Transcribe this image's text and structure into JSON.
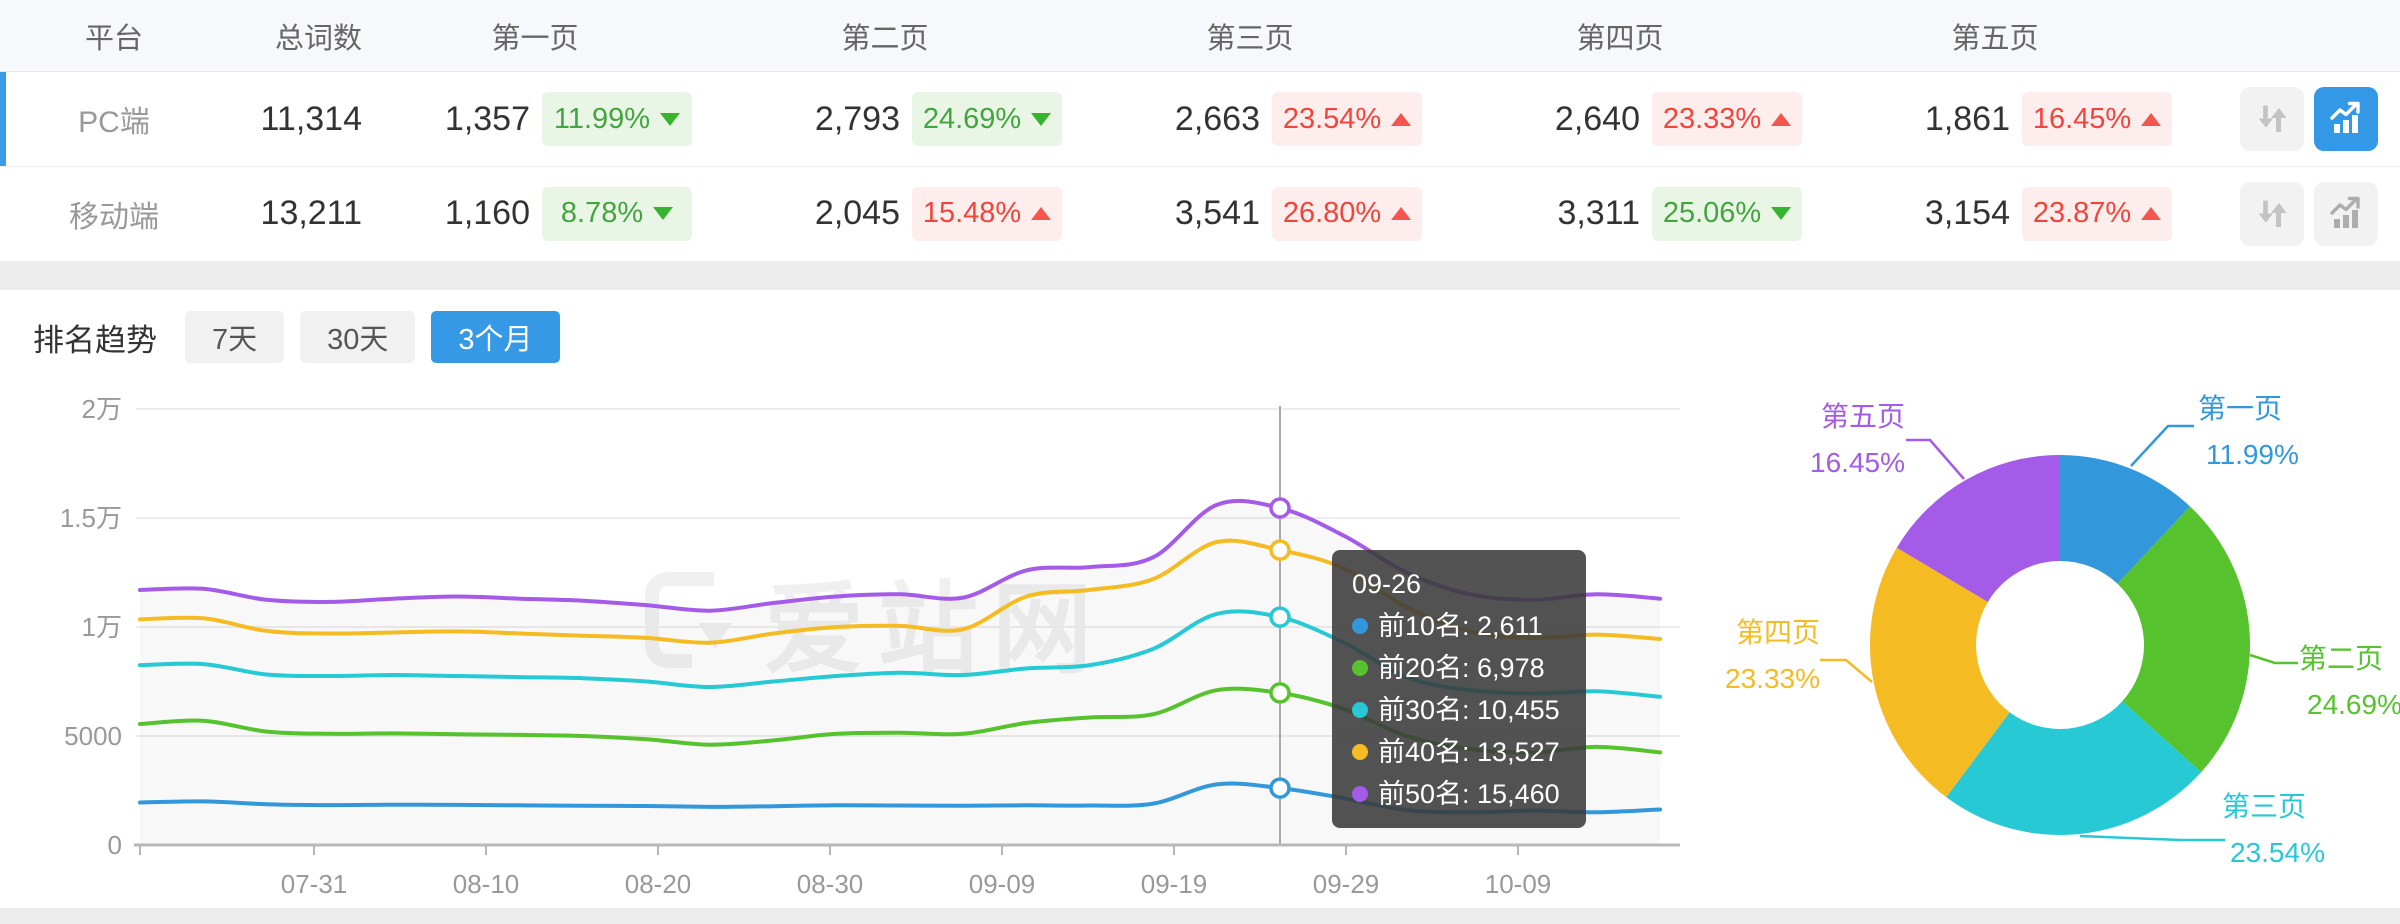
{
  "table": {
    "columns": [
      "平台",
      "总词数",
      "第一页",
      "第二页",
      "第三页",
      "第四页",
      "第五页"
    ],
    "rows": [
      {
        "platform": "PC端",
        "total": "11,314",
        "active": true,
        "pages": [
          {
            "count": "1,357",
            "pct": "11.99%",
            "dir": "down",
            "tone": "green"
          },
          {
            "count": "2,793",
            "pct": "24.69%",
            "dir": "down",
            "tone": "green"
          },
          {
            "count": "2,663",
            "pct": "23.54%",
            "dir": "up",
            "tone": "red"
          },
          {
            "count": "2,640",
            "pct": "23.33%",
            "dir": "up",
            "tone": "red"
          },
          {
            "count": "1,861",
            "pct": "16.45%",
            "dir": "up",
            "tone": "red"
          }
        ],
        "icons": [
          {
            "name": "sort-arrows-icon",
            "style": "gray"
          },
          {
            "name": "trend-chart-icon",
            "style": "blue"
          }
        ]
      },
      {
        "platform": "移动端",
        "total": "13,211",
        "active": false,
        "pages": [
          {
            "count": "1,160",
            "pct": "8.78%",
            "dir": "down",
            "tone": "green"
          },
          {
            "count": "2,045",
            "pct": "15.48%",
            "dir": "up",
            "tone": "red"
          },
          {
            "count": "3,541",
            "pct": "26.80%",
            "dir": "up",
            "tone": "red"
          },
          {
            "count": "3,311",
            "pct": "25.06%",
            "dir": "down",
            "tone": "green"
          },
          {
            "count": "3,154",
            "pct": "23.87%",
            "dir": "up",
            "tone": "red"
          }
        ],
        "icons": [
          {
            "name": "sort-arrows-icon",
            "style": "gray"
          },
          {
            "name": "trend-chart-icon",
            "style": "gray"
          }
        ]
      }
    ]
  },
  "trend": {
    "title": "排名趋势",
    "ranges": [
      "7天",
      "30天",
      "3个月"
    ],
    "active_range": "3个月"
  },
  "watermark": "爱站网",
  "colors": {
    "accent_blue": "#3599E6",
    "badge_green_text": "#43A53F",
    "badge_green_bg": "#EAF6E5",
    "badge_red_text": "#F1453C",
    "badge_red_bg": "#FDEDEC"
  },
  "chart_data": [
    {
      "type": "line",
      "title": "排名趋势",
      "x_tick_labels": [
        "07-31",
        "08-10",
        "08-20",
        "08-30",
        "09-09",
        "09-19",
        "09-29",
        "10-09"
      ],
      "y_tick_labels": [
        "0",
        "5000",
        "1万",
        "1.5万",
        "2万"
      ],
      "ylim": [
        0,
        20000
      ],
      "grid": true,
      "series": [
        {
          "name": "前10名",
          "color": "#3398DB",
          "values": [
            1950,
            2000,
            1870,
            1830,
            1850,
            1840,
            1820,
            1800,
            1790,
            1750,
            1780,
            1820,
            1810,
            1800,
            1820,
            1810,
            1900,
            2780,
            2611,
            2150,
            1600,
            1500,
            1580,
            1500,
            1630
          ]
        },
        {
          "name": "前20名",
          "color": "#56C22D",
          "values": [
            5550,
            5700,
            5200,
            5100,
            5120,
            5080,
            5050,
            5000,
            4850,
            4600,
            4800,
            5100,
            5150,
            5100,
            5600,
            5850,
            6000,
            7100,
            6978,
            6250,
            5000,
            4400,
            4250,
            4500,
            4250
          ]
        },
        {
          "name": "前30名",
          "color": "#26C9D4",
          "values": [
            8250,
            8300,
            7820,
            7750,
            7800,
            7750,
            7700,
            7650,
            7500,
            7250,
            7500,
            7750,
            7900,
            7800,
            8100,
            8250,
            9000,
            10600,
            10455,
            9300,
            7700,
            7100,
            6950,
            7050,
            6800
          ]
        },
        {
          "name": "前40名",
          "color": "#F5BB22",
          "values": [
            10350,
            10400,
            9820,
            9700,
            9750,
            9800,
            9700,
            9600,
            9500,
            9280,
            9700,
            10000,
            10050,
            9900,
            11400,
            11700,
            12200,
            13900,
            13527,
            12700,
            10900,
            9800,
            9500,
            9650,
            9450
          ]
        },
        {
          "name": "前50名",
          "color": "#A35BE8",
          "values": [
            11700,
            11750,
            11250,
            11150,
            11300,
            11400,
            11300,
            11200,
            11000,
            10750,
            11100,
            11400,
            11500,
            11350,
            12600,
            12750,
            13200,
            15600,
            15460,
            14200,
            12500,
            11500,
            11250,
            11500,
            11300
          ]
        }
      ],
      "tooltip": {
        "date": "09-26",
        "index": 18,
        "entries": [
          {
            "name": "前10名",
            "value": "2,611",
            "color": "#3398DB"
          },
          {
            "name": "前20名",
            "value": "6,978",
            "color": "#56C22D"
          },
          {
            "name": "前30名",
            "value": "10,455",
            "color": "#26C9D4"
          },
          {
            "name": "前40名",
            "value": "13,527",
            "color": "#F5BB22"
          },
          {
            "name": "前50名",
            "value": "15,460",
            "color": "#A35BE8"
          }
        ]
      }
    },
    {
      "type": "donut",
      "slices": [
        {
          "label": "第一页",
          "pct": 11.99,
          "pct_label": "11.99%",
          "color": "#3398DB"
        },
        {
          "label": "第二页",
          "pct": 24.69,
          "pct_label": "24.69%",
          "color": "#56C22D"
        },
        {
          "label": "第三页",
          "pct": 23.54,
          "pct_label": "23.54%",
          "color": "#26C9D4"
        },
        {
          "label": "第四页",
          "pct": 23.33,
          "pct_label": "23.33%",
          "color": "#F5BB22"
        },
        {
          "label": "第五页",
          "pct": 16.45,
          "pct_label": "16.45%",
          "color": "#A35BE8"
        }
      ]
    }
  ]
}
